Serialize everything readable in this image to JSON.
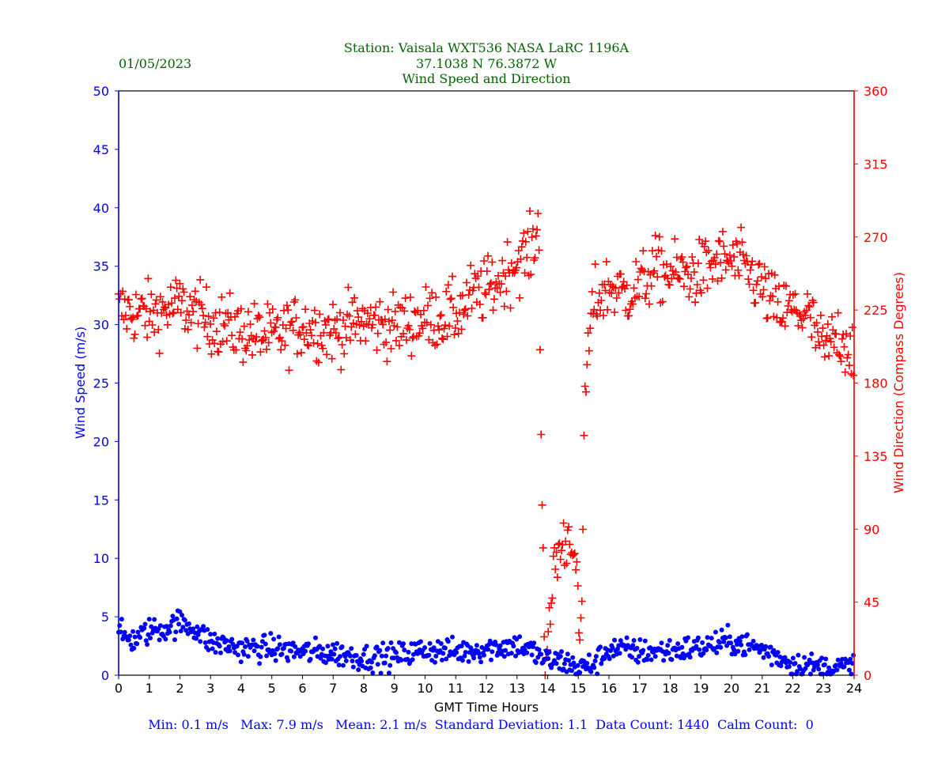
{
  "date": "01/05/2023",
  "header": {
    "line1": "Station:  Vaisala WXT536  NASA LaRC 1196A",
    "line2": "37.1038 N 76.3872 W",
    "line3": "Wind Speed and Direction"
  },
  "stats_line": "Min: 0.1 m/s   Max: 7.9 m/s   Mean: 2.1 m/s  Standard Deviation: 1.1  Data Count: 1440  Calm Count:  0",
  "colors": {
    "speed": "#0000ff",
    "direction": "#ff0000",
    "title": "#006400",
    "axis": "#000000"
  },
  "chart_data": {
    "type": "scatter",
    "title": "Wind Speed and Direction",
    "xlabel": "GMT Time Hours",
    "ylabel_left": "Wind Speed (m/s)",
    "ylabel_right": "Wind Direction (Compass Degrees)",
    "xlim": [
      0,
      24
    ],
    "ylim_left": [
      0,
      50
    ],
    "ylim_right": [
      0,
      360
    ],
    "x_ticks": [
      "0",
      "1",
      "2",
      "3",
      "4",
      "5",
      "6",
      "7",
      "8",
      "9",
      "10",
      "11",
      "12",
      "13",
      "14",
      "15",
      "16",
      "17",
      "18",
      "19",
      "20",
      "21",
      "22",
      "23",
      "24"
    ],
    "y_left_ticks": [
      "0",
      "5",
      "10",
      "15",
      "20",
      "25",
      "30",
      "35",
      "40",
      "45",
      "50"
    ],
    "y_right_ticks": [
      "0",
      "45",
      "90",
      "135",
      "180",
      "225",
      "270",
      "315",
      "360"
    ],
    "grid": false,
    "sample_interval_hours": 0.0333,
    "series": [
      {
        "name": "Wind Speed",
        "axis": "left",
        "marker": "dot",
        "trend_hours": [
          0,
          0.5,
          1,
          1.5,
          2,
          2.5,
          3,
          3.5,
          4,
          5,
          6,
          7,
          8,
          9,
          10,
          11,
          12,
          13,
          13.5,
          14,
          14.5,
          15,
          15.5,
          16,
          17,
          18,
          19,
          20,
          21,
          22,
          23,
          24
        ],
        "trend_values": [
          3.5,
          3.0,
          3.8,
          4.0,
          4.5,
          4.0,
          2.8,
          2.6,
          2.3,
          2.3,
          2.0,
          1.9,
          1.5,
          1.6,
          2.2,
          2.0,
          2.3,
          2.6,
          2.0,
          1.2,
          1.2,
          0.6,
          0.9,
          2.3,
          2.0,
          2.1,
          2.4,
          2.9,
          2.2,
          1.0,
          0.6,
          0.7
        ],
        "spread": 0.8
      },
      {
        "name": "Wind Direction",
        "axis": "right",
        "marker": "plus",
        "trend_hours": [
          0,
          1,
          2,
          3,
          4,
          5,
          6,
          7,
          8,
          9,
          10,
          11,
          11.5,
          12,
          12.5,
          13,
          13.5,
          13.7,
          13.9,
          14.0,
          14.2,
          14.5,
          14.8,
          15.0,
          15.1,
          15.2,
          15.3,
          15.5,
          16,
          16.5,
          17,
          17.5,
          18,
          18.5,
          19,
          19.5,
          20,
          20.5,
          21,
          21.5,
          22,
          22.5,
          23,
          23.5,
          24
        ],
        "trend_values": [
          225,
          222,
          228,
          218,
          212,
          208,
          216,
          212,
          218,
          215,
          220,
          222,
          233,
          237,
          245,
          255,
          262,
          280,
          10,
          8,
          70,
          80,
          90,
          40,
          10,
          170,
          195,
          230,
          240,
          235,
          240,
          250,
          248,
          247,
          248,
          255,
          255,
          250,
          238,
          225,
          225,
          222,
          200,
          210,
          200
        ],
        "spread": 14
      }
    ]
  }
}
